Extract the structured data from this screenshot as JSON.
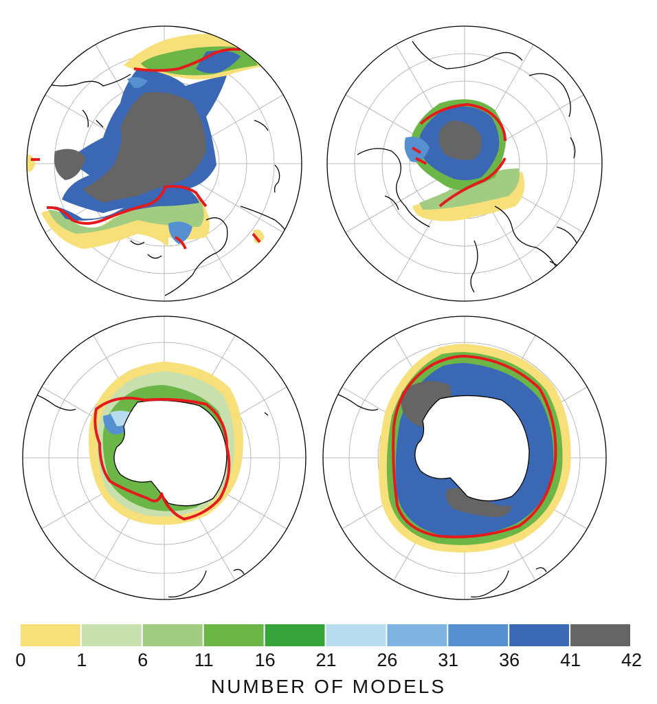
{
  "panels": [
    {
      "id": "top-left",
      "hemisphere": "north",
      "region": "arctic"
    },
    {
      "id": "top-right",
      "hemisphere": "north",
      "region": "arctic"
    },
    {
      "id": "bottom-left",
      "hemisphere": "south",
      "region": "antarctic"
    },
    {
      "id": "bottom-right",
      "hemisphere": "south",
      "region": "antarctic"
    }
  ],
  "colors": {
    "outline": "#000000",
    "grid": "#a8a8a8",
    "contour": "#e41a1c",
    "land": "#ffffff",
    "ocean": "#ffffff"
  },
  "legend": {
    "title": "NUMBER OF MODELS",
    "ticks": [
      "0",
      "1",
      "6",
      "11",
      "16",
      "21",
      "26",
      "31",
      "36",
      "41",
      "42"
    ],
    "bins": [
      {
        "from": "0",
        "to": "1",
        "color": "#f7e07a"
      },
      {
        "from": "1",
        "to": "6",
        "color": "#c8dfae"
      },
      {
        "from": "6",
        "to": "11",
        "color": "#a2cc82"
      },
      {
        "from": "11",
        "to": "16",
        "color": "#6cb648"
      },
      {
        "from": "16",
        "to": "21",
        "color": "#36a43a"
      },
      {
        "from": "21",
        "to": "26",
        "color": "#b7dced"
      },
      {
        "from": "26",
        "to": "31",
        "color": "#7eb3e2"
      },
      {
        "from": "31",
        "to": "36",
        "color": "#5690d1"
      },
      {
        "from": "36",
        "to": "41",
        "color": "#3a68b4"
      },
      {
        "from": "41",
        "to": "42",
        "color": "#656565"
      }
    ]
  }
}
